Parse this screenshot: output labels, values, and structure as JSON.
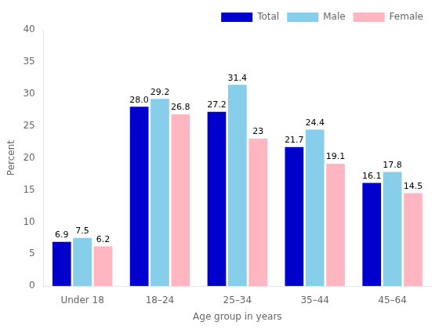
{
  "chart_data": {
    "type": "bar",
    "categories": [
      "Under 18",
      "18–24",
      "25–34",
      "35–44",
      "45–64"
    ],
    "series": [
      {
        "name": "Total",
        "color": "#0000CD",
        "values": [
          6.9,
          28.0,
          27.2,
          21.7,
          16.1
        ],
        "value_labels": [
          "6.9",
          "28.0",
          "27.2",
          "21.7",
          "16.1"
        ]
      },
      {
        "name": "Male",
        "color": "#87CEEB",
        "values": [
          7.5,
          29.2,
          31.4,
          24.4,
          17.8
        ]
      },
      {
        "name": "Female",
        "color": "#FFB6C1",
        "values": [
          6.2,
          26.8,
          23.0,
          19.1,
          14.5
        ]
      }
    ],
    "xlabel": "Age group in years",
    "ylabel": "Percent",
    "ylim": [
      0,
      40
    ],
    "yticks": [
      0,
      5,
      10,
      15,
      20,
      25,
      30,
      35,
      40
    ],
    "grid": false,
    "legend": "upper right",
    "data_labels": true
  }
}
